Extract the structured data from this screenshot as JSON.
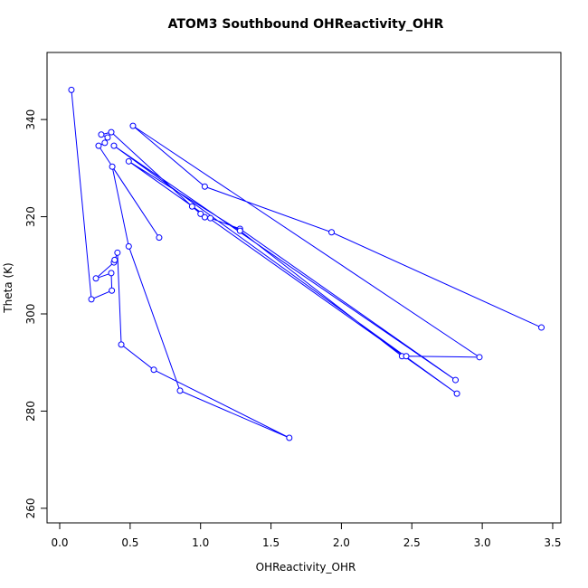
{
  "chart_data": {
    "type": "scatter",
    "title": "ATOM3 Southbound OHReactivity_OHR",
    "x_label": "OHReactivity_OHR",
    "y_label": "Theta (K)",
    "xlim": [
      -0.09,
      3.558
    ],
    "ylim": [
      257.0,
      353.8
    ],
    "xticks": [
      {
        "value": 0,
        "label": "0.0"
      },
      {
        "value": 0.5,
        "label": "0.5"
      },
      {
        "value": 1,
        "label": "1.0"
      },
      {
        "value": 1.5,
        "label": "1.5"
      },
      {
        "value": 2,
        "label": "2.0"
      },
      {
        "value": 2.5,
        "label": "2.5"
      },
      {
        "value": 3,
        "label": "3.0"
      },
      {
        "value": 3.5,
        "label": "3.5"
      }
    ],
    "yticks": [
      260,
      280,
      300,
      320,
      340
    ],
    "series": [
      {
        "color": "#0000ff",
        "x": [
          0.083,
          0.225,
          0.37,
          0.366,
          0.257,
          0.385,
          0.39,
          0.41,
          0.437,
          0.668,
          1.63,
          0.854,
          0.49,
          0.373,
          0.706,
          0.276,
          0.32,
          0.34,
          0.295,
          0.366,
          0.94,
          1.0,
          1.03,
          1.07,
          1.28,
          2.81,
          0.385,
          2.82,
          0.49,
          1.28,
          2.43,
          2.46,
          2.98,
          0.52,
          1.03,
          1.93,
          3.42
        ],
        "values": [
          346.1,
          303.0,
          304.8,
          308.4,
          307.3,
          310.6,
          311.1,
          312.6,
          293.7,
          288.5,
          274.5,
          284.2,
          313.9,
          330.3,
          315.7,
          334.6,
          335.2,
          336.3,
          336.9,
          337.4,
          322.1,
          320.6,
          319.9,
          319.7,
          317.5,
          286.4,
          334.6,
          283.6,
          331.4,
          317.1,
          291.3,
          291.3,
          291.1,
          338.7,
          326.2,
          316.8,
          297.2
        ]
      }
    ]
  }
}
